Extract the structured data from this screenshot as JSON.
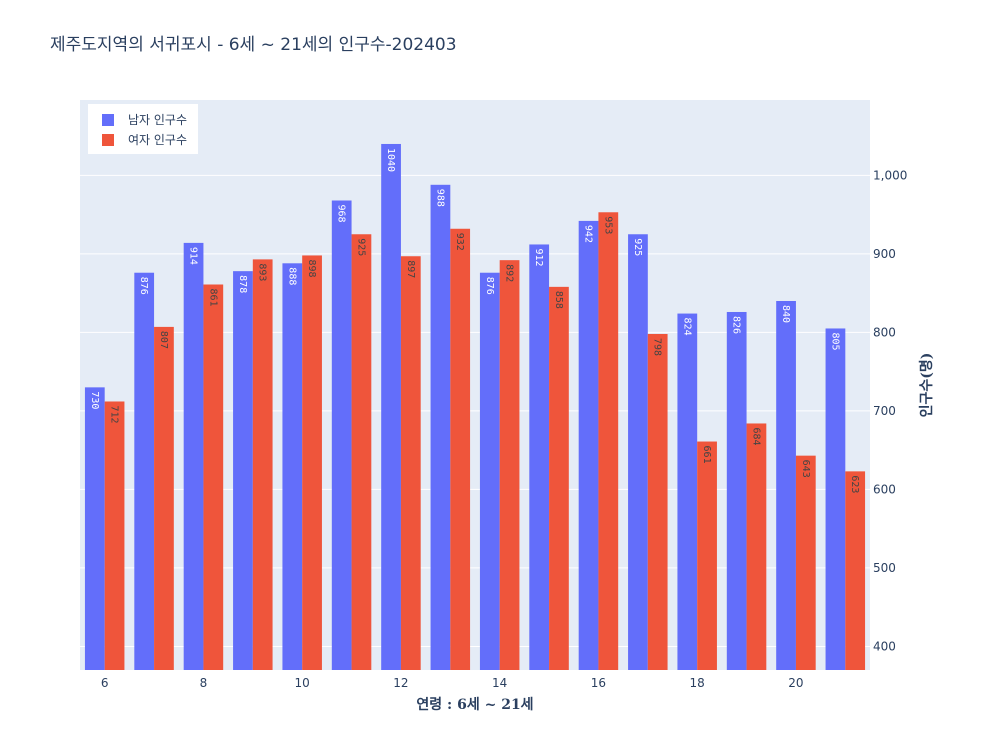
{
  "chart_data": {
    "type": "bar",
    "title": "제주도지역의 서귀포시 - 6세 ~ 21세의 인구수-202403",
    "xlabel": "연령 : 6세 ~ 21세",
    "ylabel": "인구수(명)",
    "x": [
      6,
      7,
      8,
      9,
      10,
      11,
      12,
      13,
      14,
      15,
      16,
      17,
      18,
      19,
      20,
      21
    ],
    "x_ticks": [
      6,
      8,
      10,
      12,
      14,
      16,
      18,
      20
    ],
    "y_ticks": [
      400,
      500,
      600,
      700,
      800,
      900,
      1000
    ],
    "y_tick_labels": [
      "400",
      "500",
      "600",
      "700",
      "800",
      "900",
      "1,000"
    ],
    "ylim": [
      370,
      1096
    ],
    "grid": true,
    "legend_position": "top-left",
    "y_axis_side": "right",
    "series": [
      {
        "name": "남자 인구수",
        "color": "#636efa",
        "label_color": "#ffffff",
        "values": [
          730,
          876,
          914,
          878,
          888,
          968,
          1040,
          988,
          876,
          912,
          942,
          925,
          824,
          826,
          840,
          805
        ]
      },
      {
        "name": "여자 인구수",
        "color": "#ef553b",
        "label_color": "#444444",
        "values": [
          712,
          807,
          861,
          893,
          898,
          925,
          897,
          932,
          892,
          858,
          953,
          798,
          661,
          684,
          643,
          623
        ]
      }
    ]
  },
  "colors": {
    "plot_background": "#e5ecf6",
    "grid": "#ffffff",
    "text": "#2a3f5f"
  }
}
